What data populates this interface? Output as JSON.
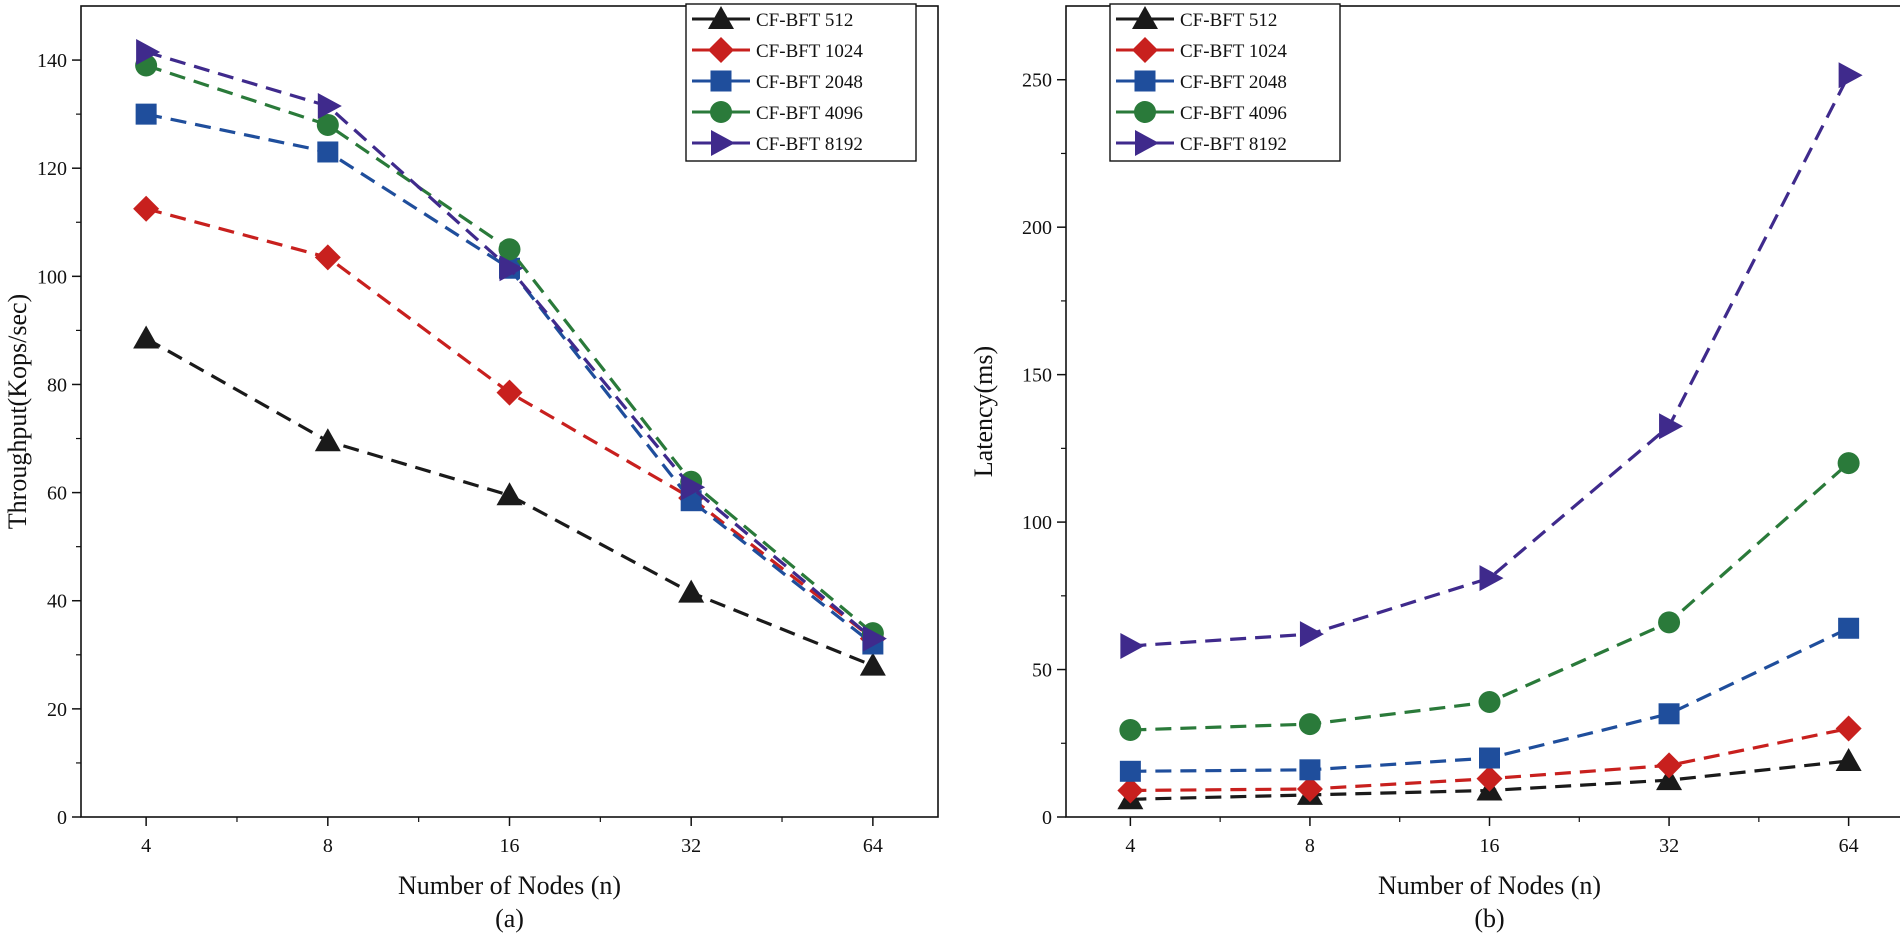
{
  "chart_data": [
    {
      "type": "line",
      "caption": "(a)",
      "xlabel": "Number of Nodes (n)",
      "ylabel": "Throughput(Kops/sec)",
      "x_scale": "log2",
      "categories": [
        "4",
        "8",
        "16",
        "32",
        "64"
      ],
      "x": [
        4,
        8,
        16,
        32,
        64
      ],
      "ylim": [
        0,
        150
      ],
      "yticks": [
        0,
        20,
        40,
        60,
        80,
        100,
        120,
        140
      ],
      "legend_position": "top-right",
      "series": [
        {
          "name": "CF-BFT 512",
          "color": "#1a1a1a",
          "marker": "triangle-up",
          "values": [
            88.5,
            69.5,
            59.5,
            41.5,
            28
          ]
        },
        {
          "name": "CF-BFT 1024",
          "color": "#c8201e",
          "marker": "diamond",
          "values": [
            112.5,
            103.5,
            78.5,
            59,
            33
          ]
        },
        {
          "name": "CF-BFT 2048",
          "color": "#1f4e9c",
          "marker": "square",
          "values": [
            130,
            123,
            101.5,
            58.5,
            32
          ]
        },
        {
          "name": "CF-BFT 4096",
          "color": "#2a7a3a",
          "marker": "circle",
          "values": [
            139,
            128,
            105,
            62,
            34
          ]
        },
        {
          "name": "CF-BFT 8192",
          "color": "#3f2a8c",
          "marker": "triangle-right",
          "values": [
            141.5,
            131.5,
            101.5,
            61,
            33
          ]
        }
      ]
    },
    {
      "type": "line",
      "caption": "(b)",
      "xlabel": "Number of Nodes (n)",
      "ylabel": "Latency(ms)",
      "x_scale": "log2",
      "categories": [
        "4",
        "8",
        "16",
        "32",
        "64"
      ],
      "x": [
        4,
        8,
        16,
        32,
        64
      ],
      "ylim": [
        0,
        275
      ],
      "yticks": [
        0,
        50,
        100,
        150,
        200,
        250
      ],
      "legend_position": "top-left",
      "series": [
        {
          "name": "CF-BFT 512",
          "color": "#1a1a1a",
          "marker": "triangle-up",
          "values": [
            6,
            7.5,
            9,
            12.5,
            19
          ]
        },
        {
          "name": "CF-BFT 1024",
          "color": "#c8201e",
          "marker": "diamond",
          "values": [
            9,
            9.5,
            13,
            17.5,
            30
          ]
        },
        {
          "name": "CF-BFT 2048",
          "color": "#1f4e9c",
          "marker": "square",
          "values": [
            15.5,
            16,
            20,
            35,
            64
          ]
        },
        {
          "name": "CF-BFT 4096",
          "color": "#2a7a3a",
          "marker": "circle",
          "values": [
            29.5,
            31.5,
            39,
            66,
            120
          ]
        },
        {
          "name": "CF-BFT 8192",
          "color": "#3f2a8c",
          "marker": "triangle-right",
          "values": [
            58,
            62,
            81,
            132.5,
            251.5
          ]
        }
      ]
    }
  ]
}
